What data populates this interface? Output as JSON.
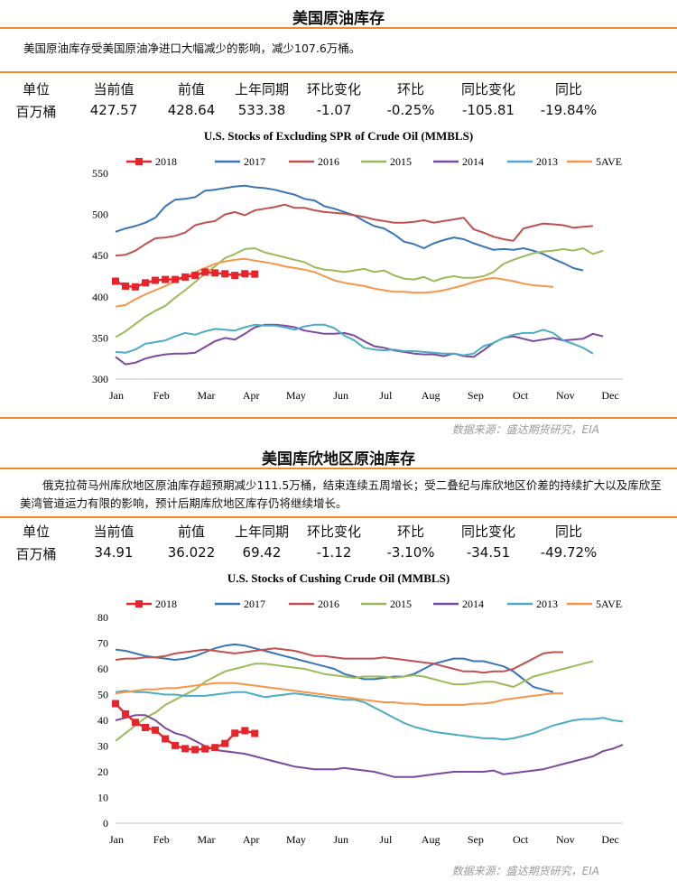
{
  "sections": [
    {
      "title": "美国原油库存",
      "description": "美国原油库存受美国原油净进口大幅减少的影响，减少107.6万桶。",
      "table": {
        "headers": [
          "单位",
          "当前值",
          "前值",
          "上年同期",
          "环比变化",
          "环比",
          "同比变化",
          "同比"
        ],
        "values": [
          "百万桶",
          "427.57",
          "428.64",
          "533.38",
          "-1.07",
          "-0.25%",
          "-105.81",
          "-19.84%"
        ]
      },
      "source": "数据来源：盛达期货研究，EIA"
    },
    {
      "title": "美国库欣地区原油库存",
      "description": "俄克拉荷马州库欣地区原油库存超预期减少111.5万桶，结束连续五周增长；受二叠纪与库欣地区价差的持续扩大以及库欣至美湾管道运力有限的影响，预计后期库欣地区库存仍将继续增长。",
      "table": {
        "headers": [
          "单位",
          "当前值",
          "前值",
          "上年同期",
          "环比变化",
          "环比",
          "同比变化",
          "同比"
        ],
        "values": [
          "百万桶",
          "34.91",
          "36.022",
          "69.42",
          "-1.12",
          "-3.10%",
          "-34.51",
          "-49.72%"
        ]
      },
      "source": "数据来源：盛达期货研究，EIA"
    }
  ],
  "chart_data": [
    {
      "type": "line",
      "title": "U.S.  Stocks of Excluding SPR of Crude Oil (MMBLS)",
      "x_ticks": [
        "Jan",
        "Feb",
        "Mar",
        "Apr",
        "May",
        "Jun",
        "Jul",
        "Aug",
        "Sep",
        "Oct",
        "Nov",
        "Dec"
      ],
      "ylim": [
        300,
        550
      ],
      "y_ticks": [
        300,
        350,
        400,
        450,
        500,
        550
      ],
      "legend_position": "top",
      "series": [
        {
          "name": "2018",
          "color": "#e8242a",
          "marker": "square",
          "values": [
            419,
            413,
            412,
            417,
            420,
            421,
            421,
            424,
            426,
            430,
            429,
            428,
            426,
            428,
            427.6
          ]
        },
        {
          "name": "2017",
          "color": "#3a75b5",
          "values": [
            479,
            483,
            486,
            490,
            496,
            510,
            518,
            519,
            521,
            529,
            530,
            532,
            534,
            535,
            533,
            532,
            530,
            527,
            524,
            519,
            517,
            510,
            507,
            503,
            499,
            492,
            486,
            483,
            476,
            467,
            464,
            459,
            465,
            469,
            472,
            470,
            465,
            461,
            457,
            458,
            457,
            459,
            456,
            452,
            446,
            441,
            435,
            432
          ]
        },
        {
          "name": "2016",
          "color": "#c0504d",
          "values": [
            450,
            451,
            456,
            464,
            471,
            472,
            474,
            478,
            487,
            490,
            492,
            500,
            503,
            499,
            505,
            507,
            509,
            512,
            508,
            508,
            505,
            503,
            502,
            501,
            499,
            497,
            494,
            492,
            490,
            490,
            491,
            493,
            490,
            492,
            494,
            496,
            482,
            478,
            473,
            470,
            468,
            483,
            486,
            489,
            488,
            487,
            484,
            485,
            486
          ]
        },
        {
          "name": "2015",
          "color": "#9bbb59",
          "values": [
            351,
            358,
            367,
            376,
            383,
            389,
            399,
            408,
            418,
            428,
            437,
            447,
            452,
            458,
            459,
            454,
            451,
            448,
            445,
            442,
            436,
            433,
            432,
            430,
            432,
            434,
            430,
            432,
            426,
            422,
            421,
            424,
            419,
            423,
            425,
            423,
            423,
            425,
            430,
            440,
            445,
            449,
            453,
            455,
            456,
            458,
            456,
            459,
            452,
            456
          ]
        },
        {
          "name": "2014",
          "color": "#7b4a9c",
          "values": [
            327,
            318,
            320,
            325,
            328,
            330,
            331,
            331,
            332,
            339,
            346,
            350,
            348,
            355,
            363,
            366,
            366,
            365,
            363,
            359,
            357,
            355,
            355,
            356,
            353,
            346,
            340,
            338,
            335,
            333,
            331,
            330,
            330,
            328,
            331,
            328,
            327,
            335,
            344,
            350,
            352,
            349,
            346,
            348,
            350,
            347,
            348,
            349,
            355,
            352
          ]
        },
        {
          "name": "2013",
          "color": "#4bacc6",
          "values": [
            333,
            332,
            336,
            343,
            345,
            347,
            352,
            356,
            354,
            358,
            361,
            360,
            359,
            363,
            366,
            365,
            365,
            363,
            360,
            364,
            366,
            366,
            362,
            353,
            347,
            338,
            336,
            335,
            336,
            334,
            334,
            333,
            332,
            331,
            331,
            329,
            331,
            340,
            344,
            350,
            354,
            356,
            356,
            360,
            356,
            347,
            343,
            338,
            331
          ]
        },
        {
          "name": "5AVE",
          "color": "#f79646",
          "values": [
            388,
            390,
            397,
            403,
            408,
            413,
            419,
            424,
            430,
            435,
            440,
            443,
            445,
            446,
            444,
            442,
            440,
            437,
            435,
            433,
            430,
            425,
            420,
            417,
            415,
            413,
            410,
            408,
            406,
            406,
            405,
            405,
            406,
            408,
            411,
            414,
            418,
            421,
            423,
            421,
            419,
            416,
            414,
            413,
            412
          ]
        }
      ]
    },
    {
      "type": "line",
      "title": "U.S.  Stocks of Cushing  Crude Oil (MMBLS)",
      "x_ticks": [
        "Jan",
        "Feb",
        "Mar",
        "Apr",
        "May",
        "Jun",
        "Jul",
        "Aug",
        "Sep",
        "Oct",
        "Nov",
        "Dec"
      ],
      "ylim": [
        0,
        80
      ],
      "y_ticks": [
        0,
        10,
        20,
        30,
        40,
        50,
        60,
        70,
        80
      ],
      "legend_position": "top",
      "series": [
        {
          "name": "2018",
          "color": "#e8242a",
          "marker": "square",
          "values": [
            46.5,
            42.5,
            39.2,
            37.2,
            36.2,
            32.8,
            30.2,
            29.0,
            28.6,
            28.9,
            29.4,
            31.0,
            35.0,
            36.0,
            34.9
          ]
        },
        {
          "name": "2017",
          "color": "#3a75b5",
          "values": [
            67.5,
            67,
            66,
            65,
            64.5,
            64,
            63.5,
            64,
            65,
            66.5,
            68,
            69,
            69.5,
            69,
            68,
            67,
            66,
            65,
            64,
            63,
            62,
            61,
            60,
            58,
            57,
            56,
            56,
            56.5,
            57,
            57,
            58,
            60,
            62,
            63,
            64,
            64,
            63,
            63,
            62,
            61,
            59,
            56,
            53,
            52,
            51
          ]
        },
        {
          "name": "2016",
          "color": "#c0504d",
          "values": [
            63.5,
            64,
            64,
            64.5,
            64.5,
            65,
            66,
            66.5,
            67,
            67.5,
            67,
            66.5,
            66,
            66.5,
            67,
            67.5,
            68,
            67.5,
            67,
            66,
            65,
            65,
            64.5,
            64,
            64,
            64,
            64,
            64.5,
            64,
            63.5,
            63,
            62.5,
            62,
            61,
            60,
            59,
            59,
            58.5,
            59,
            59,
            60,
            62,
            64,
            66,
            66.5,
            66.5
          ]
        },
        {
          "name": "2015",
          "color": "#9bbb59",
          "values": [
            32,
            35,
            38,
            41,
            43,
            46,
            48,
            50,
            52,
            55,
            57,
            59,
            60,
            61,
            62,
            62,
            61.5,
            61,
            60.5,
            60,
            59,
            58,
            57.5,
            57,
            56.5,
            57,
            57,
            57,
            56.5,
            57,
            57.5,
            57,
            56,
            55,
            54,
            54,
            54.5,
            55,
            55,
            54,
            53,
            55,
            57,
            58,
            59,
            60,
            61,
            62,
            63
          ]
        },
        {
          "name": "2014",
          "color": "#7b4a9c",
          "values": [
            40,
            41,
            42,
            42,
            40,
            37,
            35,
            34,
            32,
            30,
            28.5,
            28,
            27.5,
            27,
            26,
            25,
            24,
            23,
            22,
            21.5,
            21,
            21,
            21,
            21.5,
            21,
            20.5,
            20,
            19,
            18,
            18,
            18,
            18.5,
            19,
            19.5,
            20,
            20,
            20,
            20,
            20.5,
            19,
            19.5,
            20,
            20.5,
            21,
            22,
            23,
            24,
            25,
            26,
            28,
            29,
            30.5
          ]
        },
        {
          "name": "2013",
          "color": "#4bacc6",
          "values": [
            51,
            51.5,
            51,
            51,
            50.5,
            50,
            50,
            49.5,
            49.5,
            49.5,
            50,
            50.5,
            51,
            51,
            50,
            49,
            49.5,
            50,
            50.5,
            50,
            49.5,
            49,
            48.5,
            48,
            48,
            47,
            45,
            43,
            41,
            39,
            37.5,
            36.5,
            35.5,
            35,
            34.5,
            34,
            33.5,
            33,
            33,
            32.5,
            33,
            34,
            35,
            36.5,
            38,
            39,
            40,
            40.5,
            40.5,
            41,
            40,
            39.5
          ]
        },
        {
          "name": "5AVE",
          "color": "#f79646",
          "values": [
            50.5,
            51,
            51.5,
            52,
            52,
            52.5,
            52.5,
            53,
            53.5,
            54,
            54.5,
            54.5,
            54.5,
            54,
            53.5,
            53,
            52.5,
            52,
            51.5,
            51,
            50.5,
            50,
            49.5,
            49,
            48.5,
            48,
            47.5,
            47,
            47,
            46.5,
            46.5,
            46,
            46,
            46,
            46,
            46,
            46.5,
            46.5,
            47,
            48,
            48.5,
            49,
            49.5,
            50,
            50.5,
            50.5
          ]
        }
      ]
    }
  ]
}
